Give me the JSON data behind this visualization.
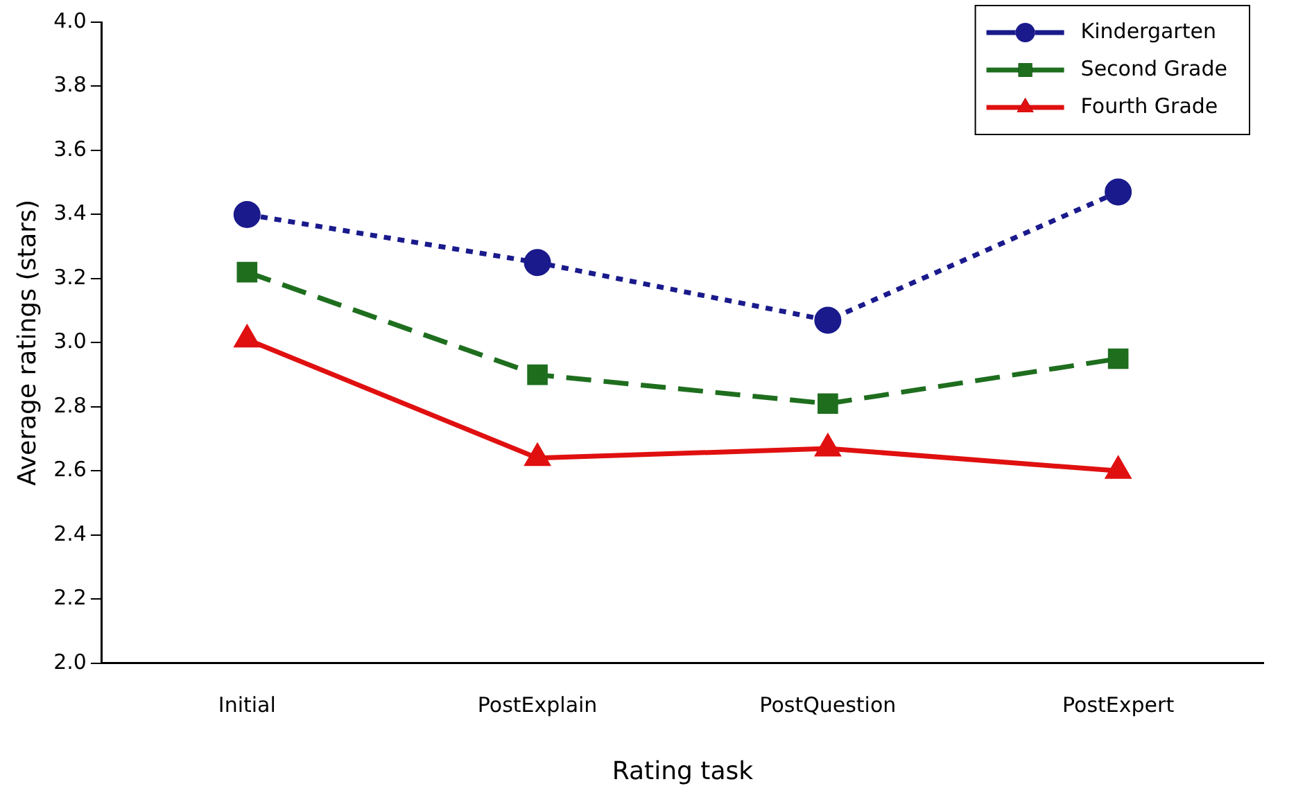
{
  "chart_data": {
    "type": "line",
    "xlabel": "Rating task",
    "ylabel": "Average ratings (stars)",
    "categories": [
      "Initial",
      "PostExplain",
      "PostQuestion",
      "PostExpert"
    ],
    "series": [
      {
        "name": "Kindergarten",
        "color": "#1a1a8c",
        "values": [
          3.4,
          3.25,
          3.07,
          3.47
        ],
        "marker": "circle",
        "line_style": "dotted"
      },
      {
        "name": "Second Grade",
        "color": "#1e6e1e",
        "values": [
          3.22,
          2.9,
          2.81,
          2.95
        ],
        "marker": "square",
        "line_style": "dashed"
      },
      {
        "name": "Fourth Grade",
        "color": "#e01010",
        "values": [
          3.01,
          2.64,
          2.67,
          2.6
        ],
        "marker": "triangle",
        "line_style": "solid"
      }
    ],
    "ylim": [
      2.0,
      4.0
    ],
    "yticks": [
      {
        "value": 2.0,
        "label": "2.0"
      },
      {
        "value": 2.2,
        "label": "2.2"
      },
      {
        "value": 2.4,
        "label": "2.4"
      },
      {
        "value": 2.6,
        "label": "2.6"
      },
      {
        "value": 2.8,
        "label": "2.8"
      },
      {
        "value": 3.0,
        "label": "3.0"
      },
      {
        "value": 3.2,
        "label": "3.2"
      },
      {
        "value": 3.4,
        "label": "3.4"
      },
      {
        "value": 3.6,
        "label": "3.6"
      },
      {
        "value": 3.8,
        "label": "3.8"
      },
      {
        "value": 4.0,
        "label": "4.0"
      }
    ],
    "grid": false,
    "legend": "top right"
  }
}
